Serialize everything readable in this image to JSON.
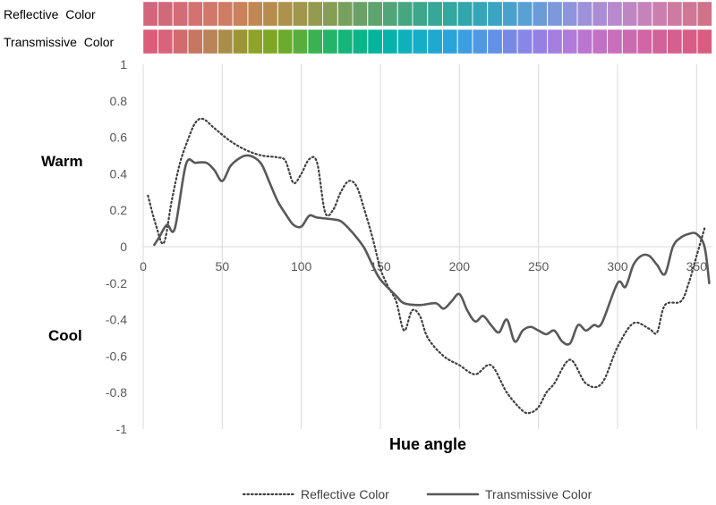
{
  "chart_data": {
    "type": "line",
    "xlabel": "Hue angle",
    "ylabel_warm": "Warm",
    "ylabel_cool": "Cool",
    "xlim": [
      0,
      360
    ],
    "ylim": [
      -1,
      1
    ],
    "x_ticks": [
      0,
      50,
      100,
      150,
      200,
      250,
      300,
      350
    ],
    "y_ticks": [
      1,
      0.8,
      0.6,
      0.4,
      0.2,
      0,
      -0.2,
      -0.4,
      -0.6,
      -0.8,
      -1
    ],
    "grid": "vertical",
    "legend_position": "bottom",
    "swatch_rows": [
      {
        "label": "Reflective  Color",
        "colors": [
          "#d2667c",
          "#d2697a",
          "#d36c76",
          "#d47271",
          "#d1776b",
          "#cf7c64",
          "#c9825b",
          "#c18854",
          "#b78d4f",
          "#ac924d",
          "#a0964d",
          "#949a50",
          "#869d56",
          "#78a05d",
          "#6aa265",
          "#5da46e",
          "#51a578",
          "#47a682",
          "#3fa68c",
          "#38a797",
          "#33a7a2",
          "#31a7ad",
          "#34a6b8",
          "#3ba4c3",
          "#48a2cc",
          "#59a0d3",
          "#6b9cd8",
          "#7d99db",
          "#8e95dc",
          "#9e91d9",
          "#ab8dd4",
          "#b68acd",
          "#bf86c4",
          "#c683ba",
          "#cb7faf",
          "#ce7ba2",
          "#d07796",
          "#d1728a"
        ]
      },
      {
        "label": "Transmissive  Color",
        "colors": [
          "#dc5d7a",
          "#d8637a",
          "#d16b6e",
          "#c67661",
          "#b88458",
          "#a98e4a",
          "#9b9633",
          "#90a229",
          "#7fa726",
          "#6cab2e",
          "#57ae3c",
          "#3bb252",
          "#23b46a",
          "#15b57b",
          "#0db48a",
          "#05b49b",
          "#06b3ab",
          "#0cb1bb",
          "#16adc7",
          "#1ea8d2",
          "#2aa3db",
          "#3c9ee1",
          "#4f98e3",
          "#6292e6",
          "#7789e7",
          "#8886e6",
          "#9581e4",
          "#a57ee0",
          "#b27ad9",
          "#bb75d0",
          "#c371c5",
          "#c86eba",
          "#cc6ab0",
          "#d066a5",
          "#d2629a",
          "#d55f8e",
          "#d75d86",
          "#d95c80"
        ]
      }
    ],
    "series": [
      {
        "name": "Reflective Color",
        "style": "dotted",
        "color": "#404040",
        "x": [
          3,
          8,
          13,
          18,
          23,
          28,
          33,
          38,
          45,
          55,
          65,
          75,
          85,
          90,
          95,
          100,
          105,
          110,
          115,
          120,
          125,
          130,
          135,
          140,
          145,
          150,
          155,
          160,
          165,
          170,
          175,
          180,
          190,
          200,
          210,
          220,
          230,
          240,
          245,
          250,
          255,
          260,
          270,
          280,
          290,
          300,
          310,
          320,
          325,
          330,
          340,
          345,
          350,
          355
        ],
        "y": [
          0.28,
          0.12,
          0.02,
          0.25,
          0.45,
          0.58,
          0.68,
          0.7,
          0.65,
          0.58,
          0.53,
          0.5,
          0.49,
          0.47,
          0.35,
          0.4,
          0.48,
          0.46,
          0.19,
          0.2,
          0.3,
          0.36,
          0.33,
          0.2,
          0.05,
          -0.12,
          -0.22,
          -0.3,
          -0.46,
          -0.35,
          -0.38,
          -0.5,
          -0.6,
          -0.65,
          -0.7,
          -0.65,
          -0.8,
          -0.9,
          -0.91,
          -0.88,
          -0.8,
          -0.75,
          -0.62,
          -0.75,
          -0.75,
          -0.55,
          -0.42,
          -0.45,
          -0.47,
          -0.32,
          -0.3,
          -0.2,
          -0.05,
          0.1
        ]
      },
      {
        "name": "Transmissive Color",
        "style": "solid",
        "color": "#595959",
        "x": [
          7,
          10,
          15,
          20,
          27,
          33,
          40,
          45,
          50,
          55,
          60,
          65,
          70,
          75,
          80,
          85,
          90,
          95,
          100,
          105,
          110,
          120,
          125,
          130,
          135,
          140,
          145,
          150,
          160,
          165,
          175,
          185,
          190,
          195,
          200,
          205,
          210,
          215,
          220,
          225,
          230,
          235,
          240,
          245,
          250,
          255,
          260,
          265,
          270,
          275,
          280,
          285,
          290,
          300,
          305,
          310,
          315,
          320,
          325,
          330,
          335,
          340,
          345,
          350,
          355,
          358
        ],
        "y": [
          0.01,
          0.05,
          0.12,
          0.1,
          0.45,
          0.46,
          0.46,
          0.42,
          0.36,
          0.44,
          0.48,
          0.5,
          0.49,
          0.45,
          0.35,
          0.25,
          0.18,
          0.12,
          0.11,
          0.17,
          0.16,
          0.15,
          0.14,
          0.1,
          0.05,
          -0.01,
          -0.1,
          -0.18,
          -0.27,
          -0.31,
          -0.32,
          -0.31,
          -0.34,
          -0.3,
          -0.26,
          -0.35,
          -0.41,
          -0.38,
          -0.43,
          -0.47,
          -0.4,
          -0.52,
          -0.46,
          -0.44,
          -0.46,
          -0.48,
          -0.46,
          -0.52,
          -0.53,
          -0.43,
          -0.46,
          -0.43,
          -0.42,
          -0.2,
          -0.22,
          -0.1,
          -0.05,
          -0.05,
          -0.1,
          -0.15,
          0.0,
          0.05,
          0.07,
          0.07,
          0.0,
          -0.2
        ]
      }
    ]
  }
}
